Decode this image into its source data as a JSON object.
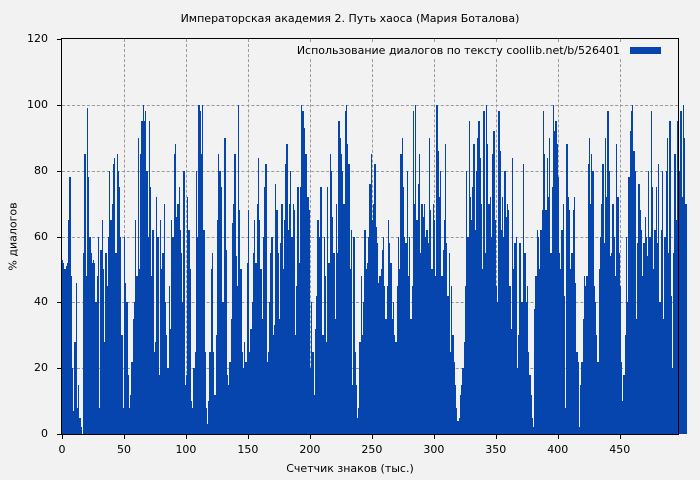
{
  "chart_data": {
    "type": "bar",
    "title": "Императорская академия 2. Путь хаоса (Мария Боталова)",
    "xlabel": "Счетчик знаков (тыс.)",
    "ylabel": "% диалогов",
    "xlim": [
      0,
      497
    ],
    "ylim": [
      0,
      120
    ],
    "x_ticks": [
      0,
      50,
      100,
      150,
      200,
      250,
      300,
      350,
      400,
      450
    ],
    "y_ticks": [
      0,
      20,
      40,
      60,
      80,
      100,
      120
    ],
    "grid": true,
    "legend": {
      "position": "top-right",
      "entries": [
        "Использование диалогов по тексту  coollib.net/b/526401"
      ]
    },
    "series": [
      {
        "name": "Использование диалогов по тексту  coollib.net/b/526401",
        "color": "#0645ad",
        "bin_width": 1,
        "values": [
          53,
          52,
          50,
          51,
          52,
          65,
          78,
          48,
          20,
          7,
          28,
          46,
          8,
          15,
          5,
          2,
          0,
          55,
          85,
          48,
          99,
          78,
          60,
          55,
          52,
          53,
          52,
          40,
          48,
          60,
          8,
          56,
          65,
          50,
          28,
          55,
          45,
          60,
          80,
          65,
          70,
          82,
          84,
          55,
          85,
          80,
          75,
          60,
          30,
          8,
          60,
          46,
          40,
          18,
          8,
          12,
          22,
          35,
          40,
          65,
          48,
          90,
          50,
          85,
          95,
          100,
          95,
          98,
          80,
          60,
          95,
          75,
          48,
          62,
          25,
          28,
          72,
          60,
          18,
          65,
          50,
          55,
          70,
          40,
          30,
          20,
          45,
          32,
          65,
          60,
          85,
          88,
          66,
          70,
          75,
          62,
          55,
          40,
          80,
          15,
          18,
          72,
          62,
          50,
          10,
          8,
          20,
          25,
          80,
          60,
          100,
          98,
          85,
          100,
          62,
          25,
          8,
          3,
          10,
          25,
          50,
          55,
          25,
          12,
          30,
          65,
          85,
          80,
          75,
          40,
          40,
          90,
          56,
          18,
          15,
          22,
          35,
          64,
          70,
          85,
          54,
          45,
          100,
          68,
          50,
          25,
          20,
          28,
          22,
          52,
          68,
          25,
          32,
          40,
          55,
          65,
          52,
          70,
          84,
          65,
          50,
          35,
          60,
          75,
          82,
          22,
          25,
          40,
          55,
          60,
          30,
          33,
          76,
          68,
          55,
          35,
          58,
          70,
          50,
          65,
          82,
          88,
          62,
          70,
          80,
          60,
          70,
          68,
          30,
          45,
          75,
          52,
          75,
          100,
          98,
          93,
          85,
          85,
          72,
          68,
          20,
          40,
          25,
          12,
          32,
          42,
          65,
          60,
          75,
          75,
          30,
          60,
          48,
          28,
          75,
          52,
          85,
          80,
          66,
          55,
          35,
          70,
          55,
          95,
          90,
          85,
          80,
          70,
          98,
          100,
          88,
          82,
          50,
          62,
          15,
          60,
          25,
          15,
          5,
          8,
          28,
          48,
          30,
          40,
          62,
          50,
          52,
          60,
          76,
          85,
          65,
          70,
          82,
          63,
          58,
          46,
          48,
          50,
          56,
          60,
          45,
          35,
          45,
          65,
          58,
          52,
          35,
          40,
          30,
          28,
          45,
          60,
          50,
          85,
          90,
          75,
          60,
          58,
          80,
          48,
          60,
          35,
          45,
          98,
          70,
          100,
          65,
          76,
          85,
          55,
          70,
          66,
          70,
          60,
          62,
          58,
          90,
          68,
          50,
          70,
          65,
          48,
          100,
          86,
          72,
          80,
          48,
          56,
          65,
          88,
          58,
          42,
          55,
          25,
          45,
          30,
          22,
          15,
          8,
          4,
          5,
          12,
          15,
          20,
          28,
          45,
          80,
          60,
          95,
          72,
          65,
          75,
          88,
          62,
          80,
          90,
          95,
          84,
          70,
          50,
          98,
          55,
          100,
          88,
          70,
          72,
          60,
          85,
          92,
          65,
          45,
          40,
          98,
          86,
          62,
          72,
          60,
          80,
          66,
          70,
          68,
          45,
          32,
          84,
          50,
          58,
          60,
          20,
          30,
          58,
          40,
          40,
          82,
          55,
          40,
          45,
          25,
          18,
          12,
          5,
          2,
          38,
          48,
          62,
          60,
          50,
          62,
          68,
          98,
          85,
          68,
          84,
          72,
          90,
          55,
          75,
          100,
          92,
          95,
          88,
          78,
          55,
          50,
          62,
          70,
          42,
          8,
          88,
          72,
          68,
          50,
          55,
          68,
          72,
          46,
          25,
          22,
          2,
          15,
          22,
          35,
          48,
          45,
          48,
          82,
          90,
          70,
          85,
          80,
          45,
          40,
          30,
          22,
          50,
          60,
          70,
          82,
          58,
          90,
          72,
          98,
          80,
          54,
          55,
          70,
          60,
          48,
          88,
          72,
          55,
          45,
          22,
          10,
          18,
          30,
          60,
          40,
          78,
          92,
          98,
          100,
          86,
          80,
          35,
          58,
          76,
          68,
          62,
          48,
          58,
          66,
          60,
          54,
          80,
          60,
          98,
          75,
          50,
          62,
          75,
          58,
          82,
          40,
          62,
          80,
          35,
          60,
          80,
          90,
          55,
          95,
          42,
          20,
          55,
          85,
          65,
          95,
          92,
          80,
          98,
          72,
          100,
          90,
          70
        ]
      }
    ]
  },
  "title": "Императорская академия 2. Путь хаоса (Мария Боталова)",
  "xaxis": {
    "title": "Счетчик знаков (тыс.)",
    "ticks": [
      "0",
      "50",
      "100",
      "150",
      "200",
      "250",
      "300",
      "350",
      "400",
      "450"
    ]
  },
  "yaxis": {
    "title": "% диалогов",
    "ticks": [
      "0",
      "20",
      "40",
      "60",
      "80",
      "100",
      "120"
    ]
  },
  "legend": {
    "label": "Использование диалогов по тексту  coollib.net/b/526401"
  }
}
